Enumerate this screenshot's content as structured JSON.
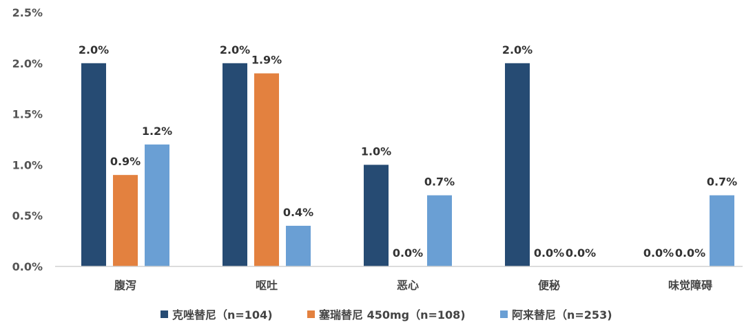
{
  "chart_data": {
    "type": "bar",
    "categories": [
      "腹泻",
      "呕吐",
      "恶心",
      "便秘",
      "味觉障碍"
    ],
    "series": [
      {
        "name": "克唑替尼（n=104)",
        "values": [
          2.0,
          2.0,
          1.0,
          2.0,
          0.0
        ],
        "color": "#264b73"
      },
      {
        "name": "塞瑞替尼 450mg（n=108)",
        "values": [
          0.9,
          1.9,
          0.0,
          0.0,
          0.0
        ],
        "color": "#e3813f"
      },
      {
        "name": "阿来替尼（n=253)",
        "values": [
          1.2,
          0.4,
          0.7,
          0.0,
          0.7
        ],
        "color": "#6a9fd4"
      }
    ],
    "data_labels": [
      [
        "2.0%",
        "2.0%",
        "1.0%",
        "2.0%",
        "0.0%"
      ],
      [
        "0.9%",
        "1.9%",
        "0.0%",
        "0.0%",
        "0.0%"
      ],
      [
        "1.2%",
        "0.4%",
        "0.7%",
        "0.0%",
        "0.7%"
      ]
    ],
    "y_ticks": [
      "0.0%",
      "0.5%",
      "1.0%",
      "1.5%",
      "2.0%",
      "2.5%"
    ],
    "ylim": [
      0,
      2.5
    ],
    "grid": false,
    "legend": "bottom",
    "title": "",
    "xlabel": "",
    "ylabel": ""
  }
}
